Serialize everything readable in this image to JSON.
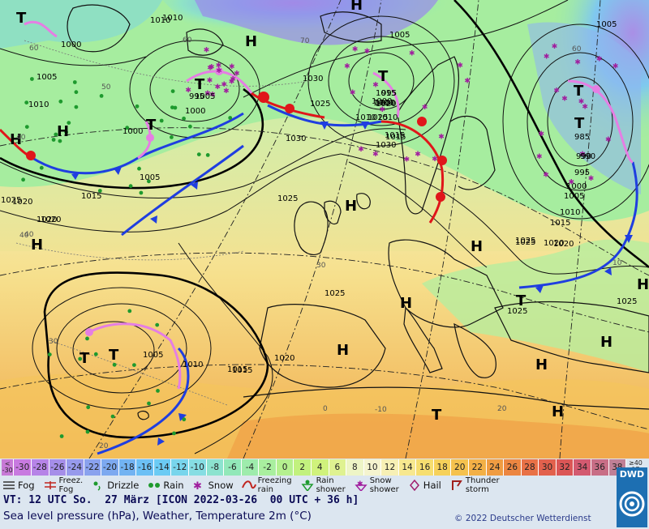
{
  "map": {
    "high_label": "H",
    "low_label": "T",
    "isobar_labels": [
      "1010",
      "1000",
      "1005",
      "1010",
      "1015",
      "1020",
      "1025",
      "1030",
      "1025",
      "1030",
      "1025",
      "1020",
      "1015",
      "1010",
      "1005",
      "1000",
      "995",
      "1000",
      "1005",
      "1010",
      "1015",
      "1020",
      "1025",
      "1030",
      "985",
      "990",
      "995",
      "1000",
      "1005",
      "1010",
      "1015",
      "1020",
      "1025",
      "1025",
      "1015",
      "1010",
      "1005",
      "1000",
      "1020",
      "1005",
      "995",
      "1000",
      "1010",
      "1015",
      "1025",
      "1025",
      "1020",
      "1025",
      "1015",
      "1020",
      "1005",
      "1000",
      "990"
    ],
    "temp_labels": [
      "60",
      "50",
      "40",
      "40",
      "30",
      "20",
      "60",
      "60",
      "70",
      "10",
      "0",
      "-10",
      "20",
      "30",
      "40"
    ],
    "highs_positions_count": 12
  },
  "scale": {
    "first_label": "<\n-30",
    "values": [
      "-30",
      "-28",
      "-26",
      "-24",
      "-22",
      "-20",
      "-18",
      "-16",
      "-14",
      "-12",
      "-10",
      "-8",
      "-6",
      "-4",
      "-2",
      "0",
      "2",
      "4",
      "6",
      "8",
      "10",
      "12",
      "14",
      "16",
      "18",
      "20",
      "22",
      "24",
      "26",
      "28",
      "30",
      "32",
      "34",
      "36",
      "38"
    ],
    "unit": "≥40\n°C",
    "colors": [
      "#c77ad6",
      "#c87ae0",
      "#b684e7",
      "#a58ee9",
      "#979aec",
      "#8aa2ee",
      "#7da9f0",
      "#72b3f2",
      "#6cc0f5",
      "#6bcbf4",
      "#78d5ec",
      "#86dde3",
      "#8ce3cf",
      "#92e8b9",
      "#9eecac",
      "#a9ef9f",
      "#b5f08f",
      "#c2f17e",
      "#d0f27c",
      "#dff291",
      "#eef5c6",
      "#f5f4cf",
      "#f7f0b5",
      "#f7e88f",
      "#f6de70",
      "#f6d15a",
      "#f5c24e",
      "#f3b046",
      "#f09c42",
      "#ec8641",
      "#e87146",
      "#e2614d",
      "#db5656",
      "#d35a70",
      "#c86e86",
      "#bf8096"
    ]
  },
  "legend": [
    {
      "icon": "fog-icon",
      "label": "Fog"
    },
    {
      "icon": "freezing-fog-icon",
      "label": "Freez.\nFog"
    },
    {
      "icon": "drizzle-icon",
      "label": "Drizzle"
    },
    {
      "icon": "rain-icon",
      "label": "Rain"
    },
    {
      "icon": "snow-icon",
      "label": "Snow"
    },
    {
      "icon": "freezing-rain-icon",
      "label": "Freezing\nrain"
    },
    {
      "icon": "rain-shower-icon",
      "label": "Rain\nshower"
    },
    {
      "icon": "snow-shower-icon",
      "label": "Snow\nshower"
    },
    {
      "icon": "hail-icon",
      "label": "Hail"
    },
    {
      "icon": "thunderstorm-icon",
      "label": "Thunder\nstorm"
    }
  ],
  "valid_time": "VT: 12 UTC So.  27 März [ICON 2022-03-26  00 UTC + 36 h]",
  "description": "Sea level pressure (hPa), Weather, Temperature 2m (°C)",
  "copyright": "© 2022 Deutscher Wetterdienst",
  "logo": "DWD",
  "colors": {
    "cold_front": "#1f3ee0",
    "warm_front": "#e0161a",
    "occlusion": "#e57ee3",
    "sea": "#9fd1c4"
  }
}
